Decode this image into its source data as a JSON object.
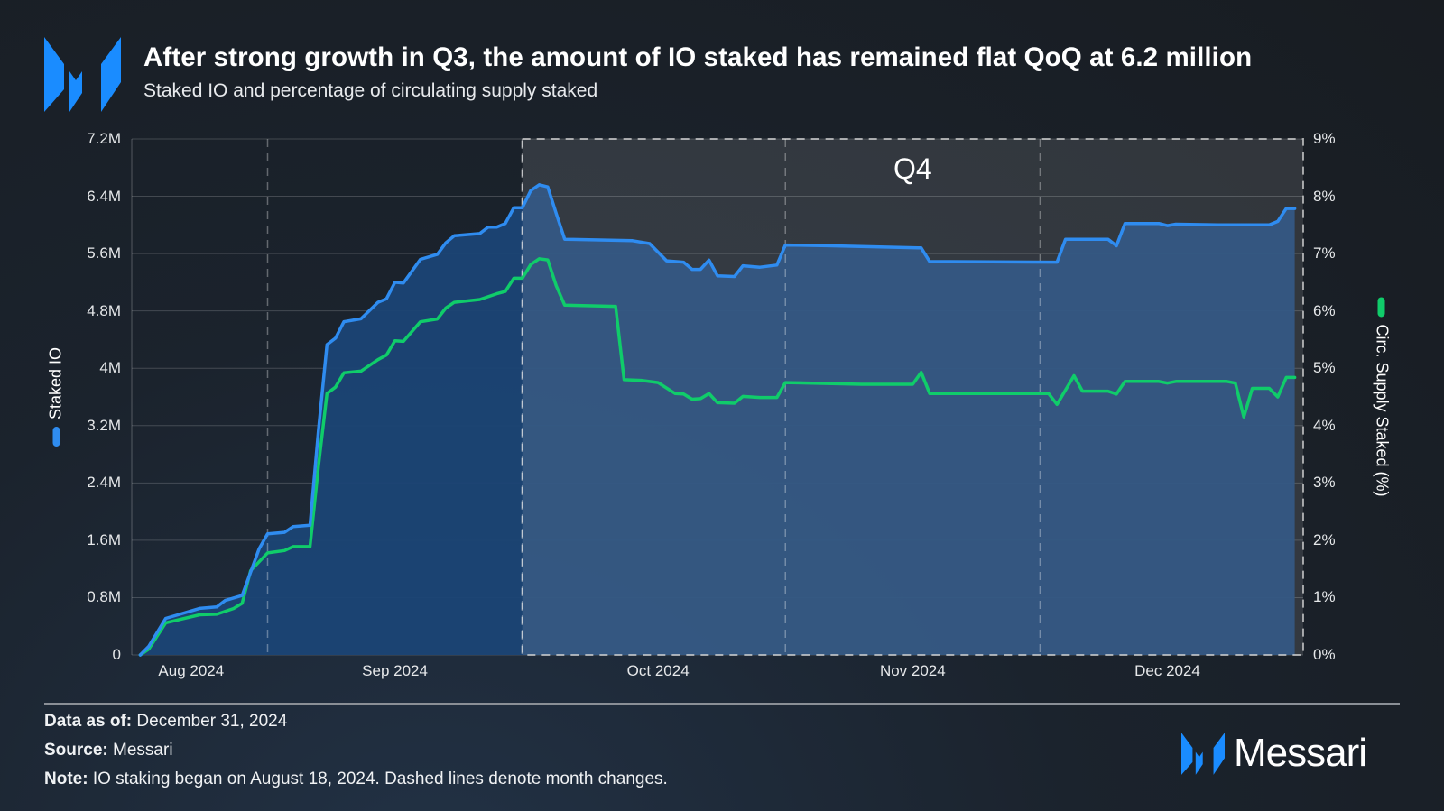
{
  "header": {
    "title": "After strong growth in Q3, the amount of IO staked has remained flat QoQ at 6.2 million",
    "subtitle": "Staked IO and percentage of circulating supply staked",
    "logo_text": "Messari"
  },
  "chart_data": {
    "type": "line",
    "title": "After strong growth in Q3, the amount of IO staked has remained flat QoQ at 6.2 million",
    "subtitle": "Staked IO and percentage of circulating supply staked",
    "x_range": [
      "2024-08-16",
      "2024-12-31"
    ],
    "x_ticks": [
      {
        "label": "Aug 2024",
        "date": "2024-08-23"
      },
      {
        "label": "Sep 2024",
        "date": "2024-09-16"
      },
      {
        "label": "Oct 2024",
        "date": "2024-10-17"
      },
      {
        "label": "Nov 2024",
        "date": "2024-11-16"
      },
      {
        "label": "Dec 2024",
        "date": "2024-12-16"
      }
    ],
    "month_dividers": [
      "2024-09-01",
      "2024-10-01",
      "2024-11-01",
      "2024-12-01"
    ],
    "highlight_region": {
      "label": "Q4",
      "start": "2024-10-01",
      "end": "2024-12-31"
    },
    "y_left": {
      "label": "Staked IO",
      "ylim": [
        0,
        7.2
      ],
      "unit": "M",
      "ticks": [
        "0",
        "0.8M",
        "1.6M",
        "2.4M",
        "3.2M",
        "4M",
        "4.8M",
        "5.6M",
        "6.4M",
        "7.2M"
      ]
    },
    "y_right": {
      "label": "Circ. Supply Staked (%)",
      "ylim": [
        0,
        9
      ],
      "unit": "%",
      "ticks": [
        "0%",
        "1%",
        "2%",
        "3%",
        "4%",
        "5%",
        "6%",
        "7%",
        "8%",
        "9%"
      ]
    },
    "grid": true,
    "colors": {
      "staked": "#2f8cf0",
      "pct": "#10cc6a",
      "area": "#1b4475",
      "q4_overlay": "#ffffff"
    },
    "series": [
      {
        "name": "Staked IO",
        "axis": "left",
        "area": true,
        "points": [
          [
            "2024-08-17",
            0
          ],
          [
            "2024-08-18",
            0.12
          ],
          [
            "2024-08-20",
            0.51
          ],
          [
            "2024-08-24",
            0.65
          ],
          [
            "2024-08-26",
            0.67
          ],
          [
            "2024-08-27",
            0.76
          ],
          [
            "2024-08-29",
            0.83
          ],
          [
            "2024-08-31",
            1.48
          ],
          [
            "2024-09-01",
            1.69
          ],
          [
            "2024-09-03",
            1.71
          ],
          [
            "2024-09-04",
            1.79
          ],
          [
            "2024-09-06",
            1.81
          ],
          [
            "2024-09-07",
            3.14
          ],
          [
            "2024-09-08",
            4.33
          ],
          [
            "2024-09-09",
            4.42
          ],
          [
            "2024-09-10",
            4.65
          ],
          [
            "2024-09-12",
            4.69
          ],
          [
            "2024-09-14",
            4.92
          ],
          [
            "2024-09-15",
            4.97
          ],
          [
            "2024-09-16",
            5.2
          ],
          [
            "2024-09-17",
            5.19
          ],
          [
            "2024-09-19",
            5.52
          ],
          [
            "2024-09-21",
            5.59
          ],
          [
            "2024-09-22",
            5.75
          ],
          [
            "2024-09-23",
            5.85
          ],
          [
            "2024-09-26",
            5.88
          ],
          [
            "2024-09-27",
            5.97
          ],
          [
            "2024-09-28",
            5.97
          ],
          [
            "2024-09-29",
            6.02
          ],
          [
            "2024-09-30",
            6.24
          ],
          [
            "2024-10-01",
            6.24
          ],
          [
            "2024-10-02",
            6.48
          ],
          [
            "2024-10-03",
            6.56
          ],
          [
            "2024-10-04",
            6.53
          ],
          [
            "2024-10-05",
            6.16
          ],
          [
            "2024-10-06",
            5.8
          ],
          [
            "2024-10-14",
            5.78
          ],
          [
            "2024-10-16",
            5.74
          ],
          [
            "2024-10-18",
            5.5
          ],
          [
            "2024-10-20",
            5.48
          ],
          [
            "2024-10-21",
            5.38
          ],
          [
            "2024-10-22",
            5.38
          ],
          [
            "2024-10-23",
            5.51
          ],
          [
            "2024-10-24",
            5.29
          ],
          [
            "2024-10-26",
            5.28
          ],
          [
            "2024-10-27",
            5.43
          ],
          [
            "2024-10-29",
            5.41
          ],
          [
            "2024-10-31",
            5.44
          ],
          [
            "2024-11-01",
            5.72
          ],
          [
            "2024-11-06",
            5.71
          ],
          [
            "2024-11-17",
            5.68
          ],
          [
            "2024-11-18",
            5.49
          ],
          [
            "2024-12-03",
            5.48
          ],
          [
            "2024-12-04",
            5.8
          ],
          [
            "2024-12-09",
            5.8
          ],
          [
            "2024-12-10",
            5.71
          ],
          [
            "2024-12-11",
            6.02
          ],
          [
            "2024-12-15",
            6.02
          ],
          [
            "2024-12-16",
            5.99
          ],
          [
            "2024-12-17",
            6.01
          ],
          [
            "2024-12-22",
            6.0
          ],
          [
            "2024-12-28",
            6.0
          ],
          [
            "2024-12-29",
            6.05
          ],
          [
            "2024-12-30",
            6.23
          ],
          [
            "2024-12-31",
            6.23
          ]
        ]
      },
      {
        "name": "Circ. Supply Staked (%)",
        "axis": "right",
        "area": false,
        "points": [
          [
            "2024-08-17",
            0
          ],
          [
            "2024-08-18",
            0.1
          ],
          [
            "2024-08-20",
            0.56
          ],
          [
            "2024-08-24",
            0.7
          ],
          [
            "2024-08-26",
            0.71
          ],
          [
            "2024-08-28",
            0.81
          ],
          [
            "2024-08-29",
            0.9
          ],
          [
            "2024-08-30",
            1.47
          ],
          [
            "2024-09-01",
            1.78
          ],
          [
            "2024-09-03",
            1.82
          ],
          [
            "2024-09-04",
            1.89
          ],
          [
            "2024-09-06",
            1.89
          ],
          [
            "2024-09-07",
            3.3
          ],
          [
            "2024-09-08",
            4.56
          ],
          [
            "2024-09-09",
            4.67
          ],
          [
            "2024-09-10",
            4.92
          ],
          [
            "2024-09-12",
            4.95
          ],
          [
            "2024-09-14",
            5.15
          ],
          [
            "2024-09-15",
            5.23
          ],
          [
            "2024-09-16",
            5.48
          ],
          [
            "2024-09-17",
            5.47
          ],
          [
            "2024-09-19",
            5.81
          ],
          [
            "2024-09-21",
            5.86
          ],
          [
            "2024-09-22",
            6.05
          ],
          [
            "2024-09-23",
            6.15
          ],
          [
            "2024-09-26",
            6.2
          ],
          [
            "2024-09-28",
            6.3
          ],
          [
            "2024-09-29",
            6.34
          ],
          [
            "2024-09-30",
            6.57
          ],
          [
            "2024-10-01",
            6.57
          ],
          [
            "2024-10-02",
            6.81
          ],
          [
            "2024-10-03",
            6.91
          ],
          [
            "2024-10-04",
            6.89
          ],
          [
            "2024-10-05",
            6.44
          ],
          [
            "2024-10-06",
            6.1
          ],
          [
            "2024-10-12",
            6.08
          ],
          [
            "2024-10-13",
            4.8
          ],
          [
            "2024-10-15",
            4.79
          ],
          [
            "2024-10-17",
            4.75
          ],
          [
            "2024-10-19",
            4.56
          ],
          [
            "2024-10-20",
            4.55
          ],
          [
            "2024-10-21",
            4.46
          ],
          [
            "2024-10-22",
            4.47
          ],
          [
            "2024-10-23",
            4.56
          ],
          [
            "2024-10-24",
            4.4
          ],
          [
            "2024-10-26",
            4.39
          ],
          [
            "2024-10-27",
            4.51
          ],
          [
            "2024-10-29",
            4.49
          ],
          [
            "2024-10-31",
            4.49
          ],
          [
            "2024-11-01",
            4.75
          ],
          [
            "2024-11-10",
            4.72
          ],
          [
            "2024-11-16",
            4.72
          ],
          [
            "2024-11-17",
            4.93
          ],
          [
            "2024-11-18",
            4.56
          ],
          [
            "2024-12-02",
            4.56
          ],
          [
            "2024-12-03",
            4.37
          ],
          [
            "2024-12-05",
            4.87
          ],
          [
            "2024-12-06",
            4.6
          ],
          [
            "2024-12-09",
            4.6
          ],
          [
            "2024-12-10",
            4.55
          ],
          [
            "2024-12-11",
            4.77
          ],
          [
            "2024-12-15",
            4.77
          ],
          [
            "2024-12-16",
            4.74
          ],
          [
            "2024-12-17",
            4.77
          ],
          [
            "2024-12-23",
            4.77
          ],
          [
            "2024-12-24",
            4.74
          ],
          [
            "2024-12-25",
            4.15
          ],
          [
            "2024-12-26",
            4.65
          ],
          [
            "2024-12-28",
            4.65
          ],
          [
            "2024-12-29",
            4.5
          ],
          [
            "2024-12-30",
            4.84
          ],
          [
            "2024-12-31",
            4.84
          ]
        ]
      }
    ]
  },
  "footer": {
    "data_as_of_label": "Data as of:",
    "data_as_of": "December 31, 2024",
    "source_label": "Source:",
    "source": "Messari",
    "note_label": "Note:",
    "note": "IO staking began on August 18, 2024. Dashed lines denote month changes."
  }
}
